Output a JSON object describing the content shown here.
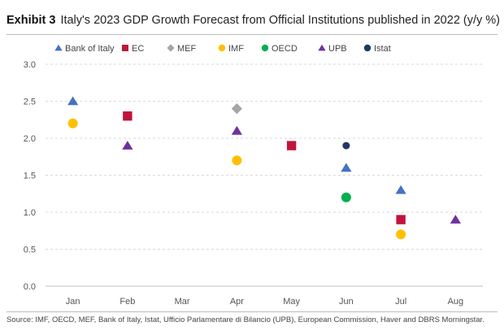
{
  "header": {
    "exhibit": "Exhibit 3",
    "title": "Italy's 2023 GDP Growth Forecast from Official Institutions published in 2022 (y/y %)"
  },
  "source": "Source: IMF, OECD, MEF, Bank of Italy, Istat, Ufficio Parlamentare di Bilancio (UPB), European Commission, Haver and DBRS Morningstar.",
  "chart_data": {
    "type": "scatter",
    "title": "Italy's 2023 GDP Growth Forecast from Official Institutions published in 2022 (y/y %)",
    "xlabel": "",
    "ylabel": "",
    "categories": [
      "Jan",
      "Feb",
      "Mar",
      "Apr",
      "May",
      "Jun",
      "Jul",
      "Aug"
    ],
    "ylim": [
      0,
      3
    ],
    "yticks": [
      "0.0",
      "0.5",
      "1.0",
      "1.5",
      "2.0",
      "2.5",
      "3.0"
    ],
    "grid": true,
    "legend_position": "top-left",
    "series": [
      {
        "name": "Bank of Italy",
        "marker": "triangle",
        "color": "#4472c4",
        "points": [
          {
            "x": "Jan",
            "y": 2.5
          },
          {
            "x": "Jun",
            "y": 1.6
          },
          {
            "x": "Jul",
            "y": 1.3
          }
        ]
      },
      {
        "name": "EC",
        "marker": "square",
        "color": "#c0143c",
        "points": [
          {
            "x": "Feb",
            "y": 2.3
          },
          {
            "x": "May",
            "y": 1.9
          },
          {
            "x": "Jul",
            "y": 0.9
          }
        ]
      },
      {
        "name": "MEF",
        "marker": "diamond",
        "color": "#a6a6a6",
        "points": [
          {
            "x": "Apr",
            "y": 2.4
          }
        ]
      },
      {
        "name": "IMF",
        "marker": "circle",
        "color": "#ffc000",
        "points": [
          {
            "x": "Jan",
            "y": 2.2
          },
          {
            "x": "Apr",
            "y": 1.7
          },
          {
            "x": "Jul",
            "y": 0.7
          }
        ]
      },
      {
        "name": "OECD",
        "marker": "circle",
        "color": "#00b050",
        "points": [
          {
            "x": "Jun",
            "y": 1.2
          }
        ]
      },
      {
        "name": "UPB",
        "marker": "triangle",
        "color": "#7030a0",
        "points": [
          {
            "x": "Feb",
            "y": 1.9
          },
          {
            "x": "Apr",
            "y": 2.1
          },
          {
            "x": "Aug",
            "y": 0.9
          }
        ]
      },
      {
        "name": "Istat",
        "marker": "circle",
        "color": "#1f3864",
        "points": [
          {
            "x": "Jun",
            "y": 1.9
          }
        ]
      }
    ]
  }
}
